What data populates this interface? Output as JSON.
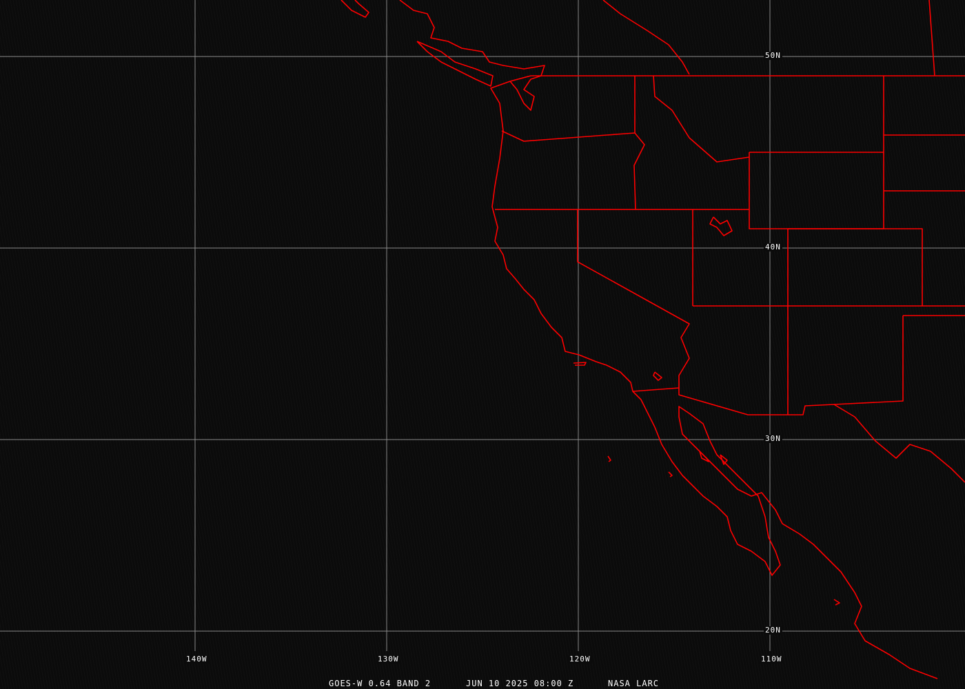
{
  "caption": {
    "satellite_band": "GOES-W 0.64 BAND 2",
    "datetime": "JUN 10 2025 08:00 Z",
    "credit": "NASA LARC"
  },
  "latitude_labels": [
    "50N",
    "40N",
    "30N",
    "20N"
  ],
  "longitude_labels": [
    "140W",
    "130W",
    "120W",
    "110W"
  ],
  "colors": {
    "background": "#0b0b0b",
    "grid": "#8a8a8a",
    "boundaries": "#ff0000",
    "text": "#ffffff"
  }
}
